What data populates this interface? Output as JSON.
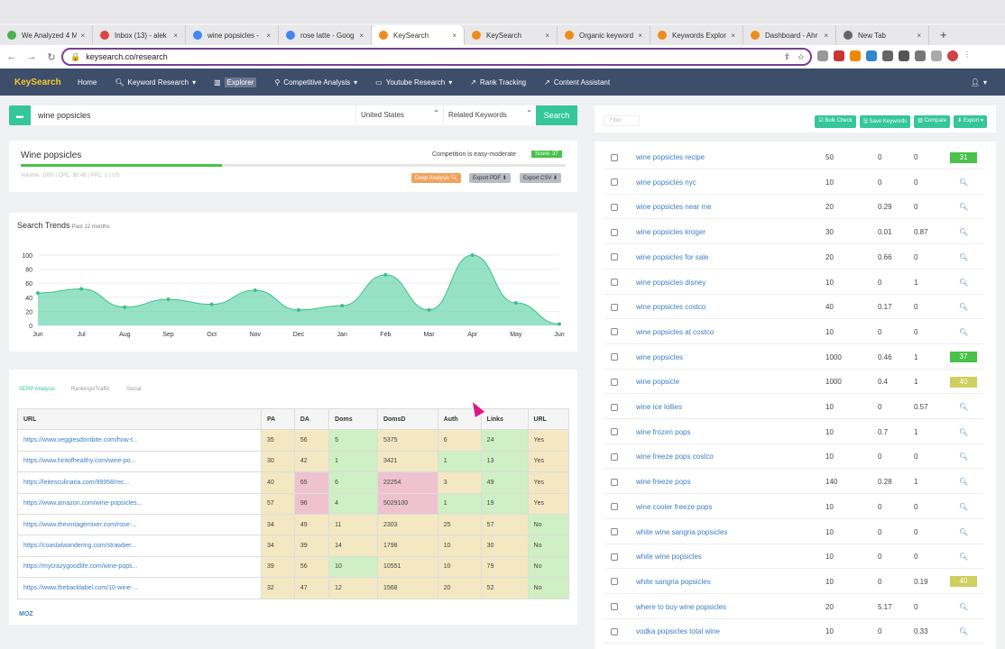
{
  "browser": {
    "tabs": [
      {
        "label": "We Analyzed 4 M",
        "icon": "globe-icon",
        "color": "#4caf50"
      },
      {
        "label": "Inbox (13) - alek",
        "icon": "gmail-icon",
        "color": "#d44"
      },
      {
        "label": "wine popsicles -",
        "icon": "google-icon",
        "color": "#4285f4"
      },
      {
        "label": "rose latte - Goog",
        "icon": "google-icon",
        "color": "#4285f4"
      },
      {
        "label": "KeySearch",
        "icon": "keysearch-icon",
        "color": "#f08c1e",
        "active": true
      },
      {
        "label": "KeySearch",
        "icon": "keysearch-icon",
        "color": "#f08c1e"
      },
      {
        "label": "Organic keyword",
        "icon": "ahrefs-icon",
        "color": "#f08c1e"
      },
      {
        "label": "Keywords Explor",
        "icon": "ahrefs-icon",
        "color": "#f08c1e"
      },
      {
        "label": "Dashboard - Ahr",
        "icon": "ahrefs-icon",
        "color": "#f08c1e"
      },
      {
        "label": "New Tab",
        "icon": "chrome-icon",
        "color": "#666"
      }
    ],
    "url": "keysearch.co/research"
  },
  "nav": {
    "logo": "KeySearch",
    "items": [
      "Home",
      "Keyword Research",
      "Explorer",
      "Competitive Analysis",
      "Youtube Research",
      "Rank Tracking",
      "Content Assistant"
    ]
  },
  "search": {
    "value": "wine popsicles",
    "country": "United States",
    "mode": "Related Keywords",
    "button": "Search"
  },
  "summary": {
    "title": "Wine popsicles",
    "competition": "Competition is easy-moderate",
    "score": "Score: 37",
    "meta": "Volume: 1000 | CPC: $0.46 | PPC: 1 | US",
    "buttons": [
      "Deep Analysis",
      "Export PDF",
      "Export CSV"
    ]
  },
  "trends": {
    "title": "Search Trends",
    "sub": "Past 12 months"
  },
  "chart_data": {
    "type": "area",
    "x": [
      "Jun",
      "Jul",
      "Aug",
      "Sep",
      "Oct",
      "Nov",
      "Dec",
      "Jan",
      "Feb",
      "Mar",
      "Apr",
      "May",
      "Jun"
    ],
    "values": [
      46,
      52,
      26,
      37,
      30,
      50,
      22,
      28,
      72,
      22,
      100,
      32,
      2
    ],
    "yticks": [
      0,
      20,
      40,
      60,
      80,
      100
    ],
    "ylim": [
      0,
      100
    ],
    "color": "#5fd3a7"
  },
  "serp": {
    "tabs": [
      "SERP Analysis",
      "Rankings/Traffic",
      "Social"
    ],
    "headers": [
      "URL",
      "PA",
      "DA",
      "Doms",
      "DomsD",
      "Auth",
      "Links",
      "URL"
    ],
    "rows": [
      [
        "https://www.veggiesdontbite.com/how-t...",
        "35",
        "56",
        "5",
        "5375",
        "6",
        "24",
        "Yes"
      ],
      [
        "https://www.hintofhealthy.com/wine-po...",
        "30",
        "42",
        "1",
        "3421",
        "1",
        "13",
        "Yes"
      ],
      [
        "https://leitesculinaria.com/99958/rec...",
        "40",
        "65",
        "6",
        "22254",
        "3",
        "49",
        "Yes"
      ],
      [
        "https://www.amazon.com/wine-popsicles...",
        "57",
        "96",
        "4",
        "5029100",
        "1",
        "19",
        "Yes"
      ],
      [
        "https://www.thevintagemixer.com/rose-...",
        "34",
        "49",
        "11",
        "2303",
        "25",
        "57",
        "No"
      ],
      [
        "https://coastalwandering.com/strawber...",
        "34",
        "39",
        "14",
        "1798",
        "10",
        "30",
        "No"
      ],
      [
        "https://mycrazygoodlife.com/wine-pops...",
        "39",
        "56",
        "10",
        "10551",
        "10",
        "79",
        "No"
      ],
      [
        "https://www.thebacklabel.com/10-wine-...",
        "32",
        "47",
        "12",
        "1568",
        "20",
        "52",
        "No"
      ]
    ],
    "moz": "MOZ"
  },
  "right": {
    "filter": "Filter",
    "buttons": [
      "Bulk Check",
      "Save Keywords",
      "Compare",
      "Export"
    ],
    "rows": [
      {
        "kw": "wine popsicles recipe",
        "v": "50",
        "a": "0",
        "b": "0",
        "s": "31",
        "sc": "#49c14a"
      },
      {
        "kw": "wine popsicles nyc",
        "v": "10",
        "a": "0",
        "b": "0"
      },
      {
        "kw": "wine popsicles near me",
        "v": "20",
        "a": "0.29",
        "b": "0"
      },
      {
        "kw": "wine popsicles kroger",
        "v": "30",
        "a": "0.01",
        "b": "0.87"
      },
      {
        "kw": "wine popsicles for sale",
        "v": "20",
        "a": "0.66",
        "b": "0"
      },
      {
        "kw": "wine popsicles disney",
        "v": "10",
        "a": "0",
        "b": "1"
      },
      {
        "kw": "wine popsicles costco",
        "v": "40",
        "a": "0.17",
        "b": "0"
      },
      {
        "kw": "wine popsicles at costco",
        "v": "10",
        "a": "0",
        "b": "0"
      },
      {
        "kw": "wine popsicles",
        "v": "1000",
        "a": "0.46",
        "b": "1",
        "s": "37",
        "sc": "#49c14a"
      },
      {
        "kw": "wine popsicle",
        "v": "1000",
        "a": "0.4",
        "b": "1",
        "s": "40",
        "sc": "#cfcf5f"
      },
      {
        "kw": "wine ice lollies",
        "v": "10",
        "a": "0",
        "b": "0.57"
      },
      {
        "kw": "wine frozen pops",
        "v": "10",
        "a": "0.7",
        "b": "1"
      },
      {
        "kw": "wine freeze pops costco",
        "v": "10",
        "a": "0",
        "b": "0"
      },
      {
        "kw": "wine freeze pops",
        "v": "140",
        "a": "0.28",
        "b": "1"
      },
      {
        "kw": "wine cooler freeze pops",
        "v": "10",
        "a": "0",
        "b": "0"
      },
      {
        "kw": "white wine sangria popsicles",
        "v": "10",
        "a": "0",
        "b": "0"
      },
      {
        "kw": "white wine popsicles",
        "v": "10",
        "a": "0",
        "b": "0"
      },
      {
        "kw": "white sangria popsicles",
        "v": "10",
        "a": "0",
        "b": "0.19",
        "s": "40",
        "sc": "#cfcf5f"
      },
      {
        "kw": "where to buy wine popsicles",
        "v": "20",
        "a": "5.17",
        "b": "0"
      },
      {
        "kw": "vodka popsicles total wine",
        "v": "10",
        "a": "0",
        "b": "0.33"
      }
    ]
  }
}
